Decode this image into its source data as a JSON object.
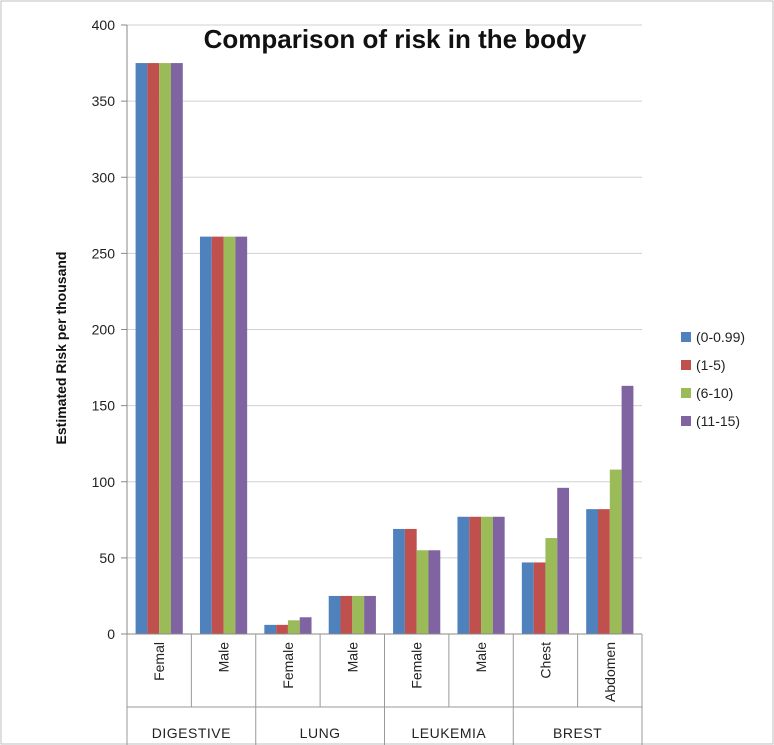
{
  "chart_data": {
    "type": "bar",
    "title": "Comparison of risk in the body",
    "ylabel": "Estimated Risk per thousand",
    "xlabel": "",
    "ylim": [
      0,
      400
    ],
    "yticks": [
      0,
      50,
      100,
      150,
      200,
      250,
      300,
      350,
      400
    ],
    "grid": true,
    "legend_position": "right",
    "categories": [
      "Femal",
      "Male",
      "Female",
      "Male",
      "Female",
      "Male",
      "Chest",
      "Abdomen"
    ],
    "groups": [
      {
        "label": "DIGESTIVE",
        "span": 2
      },
      {
        "label": "LUNG",
        "span": 2
      },
      {
        "label": "LEUKEMIA",
        "span": 2
      },
      {
        "label": "BREST",
        "span": 2
      }
    ],
    "series": [
      {
        "name": "(0-0.99)",
        "color": "#4f81bd",
        "values": [
          375,
          261,
          6,
          25,
          69,
          77,
          47,
          82
        ]
      },
      {
        "name": "(1-5)",
        "color": "#c0504d",
        "values": [
          375,
          261,
          6,
          25,
          69,
          77,
          47,
          82
        ]
      },
      {
        "name": "(6-10)",
        "color": "#9bbb59",
        "values": [
          375,
          261,
          9,
          25,
          55,
          77,
          63,
          108
        ]
      },
      {
        "name": "(11-15)",
        "color": "#8064a2",
        "values": [
          375,
          261,
          11,
          25,
          55,
          77,
          96,
          163
        ]
      }
    ]
  }
}
